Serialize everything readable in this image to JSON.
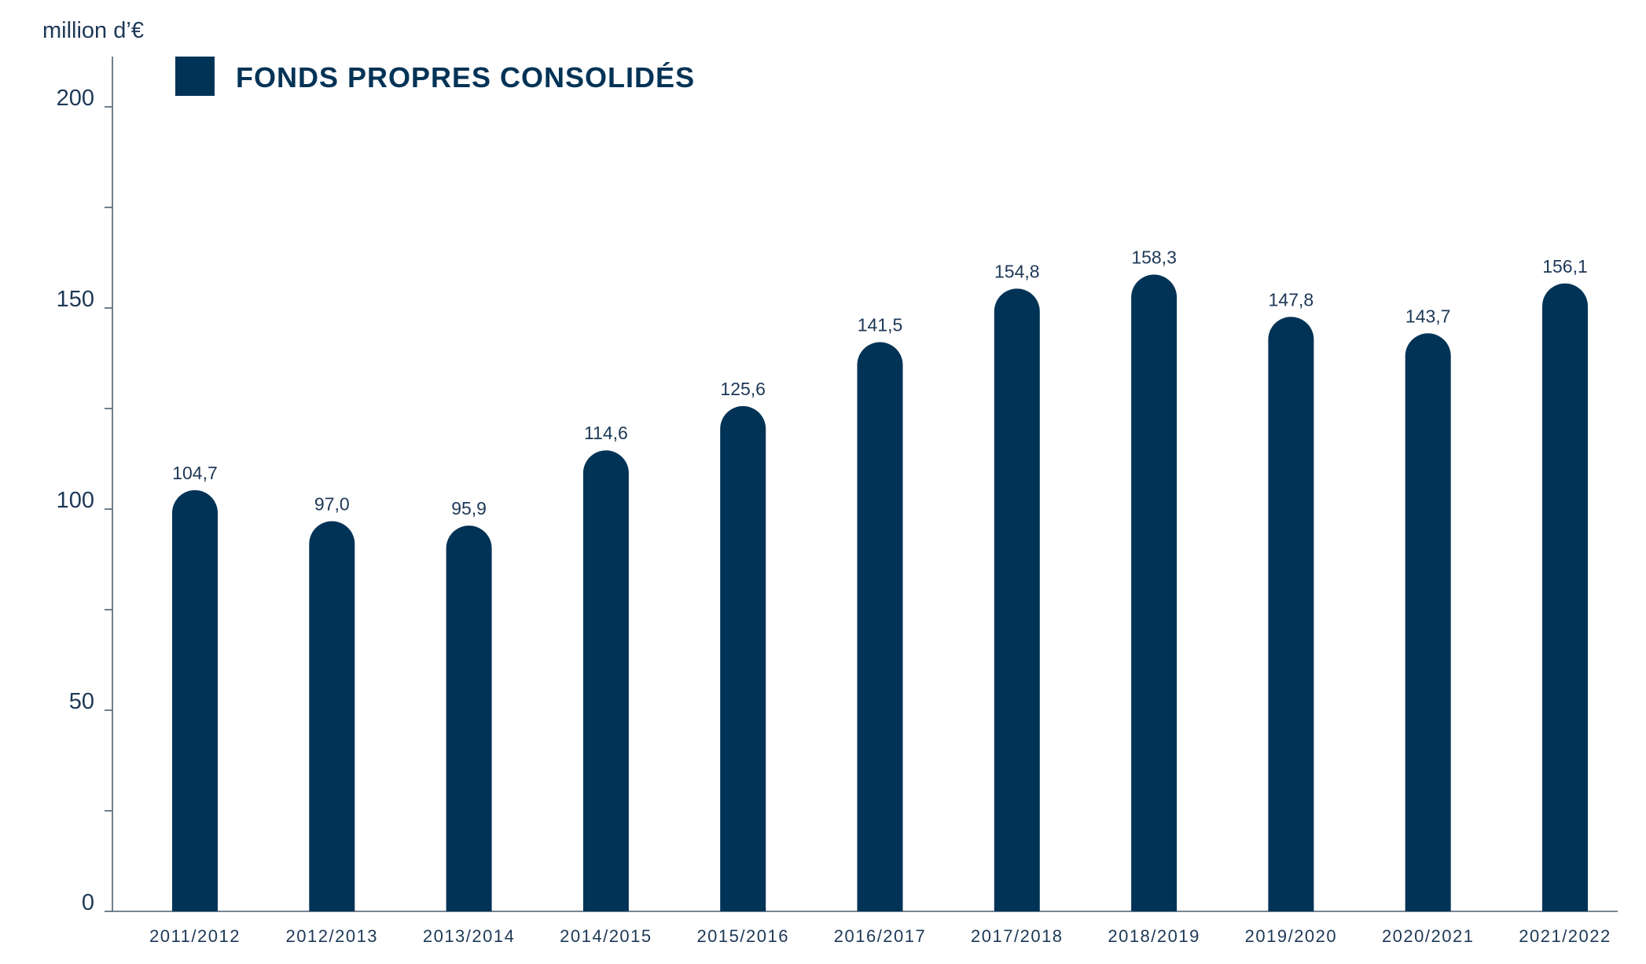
{
  "unit_label": "million d’€",
  "colors": {
    "bar": "#003356",
    "text": "#1d3856",
    "axis": "#4a5f73"
  },
  "chart_data": {
    "type": "bar",
    "categories": [
      "2011/2012",
      "2012/2013",
      "2013/2014",
      "2014/2015",
      "2015/2016",
      "2016/2017",
      "2017/2018",
      "2018/2019",
      "2019/2020",
      "2020/2021",
      "2021/2022"
    ],
    "series": [
      {
        "name": "FONDS PROPRES CONSOLIDÉS",
        "values": [
          104.7,
          97.0,
          95.9,
          114.6,
          125.6,
          141.5,
          154.8,
          158.3,
          147.8,
          143.7,
          156.1
        ],
        "value_labels": [
          "104,7",
          "97,0",
          "95,9",
          "114,6",
          "125,6",
          "141,5",
          "154,8",
          "158,3",
          "147,8",
          "143,7",
          "156,1"
        ]
      }
    ],
    "ylabel": "million d’€",
    "ylim": [
      0,
      200
    ],
    "yticks": [
      0,
      50,
      100,
      150,
      200
    ],
    "yticks_minor": [
      25,
      75,
      125,
      175
    ],
    "legend": {
      "position": "top-left",
      "label": "FONDS PROPRES CONSOLIDÉS"
    },
    "grid": false
  }
}
